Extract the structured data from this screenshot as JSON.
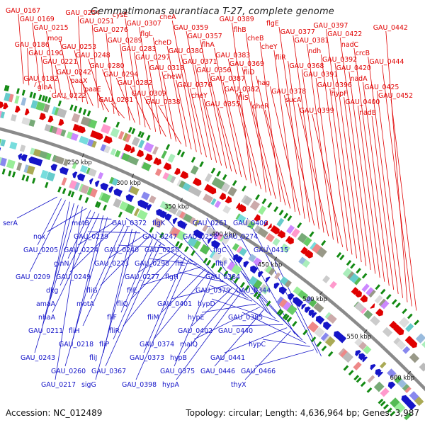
{
  "title": "Gemmatimonas aurantiaca T-27, complete genome",
  "footer": {
    "accession": "Accession: NC_012489",
    "summary": "Topology: circular; Length: 4,636,964 bp; Genes: 3,987"
  },
  "colors": {
    "forward_genes": "#e00000",
    "reverse_genes": "#1515c8",
    "backbone": "#8a8a8a",
    "tick_marker": "#138a13"
  },
  "ticks": [
    "250 kbp",
    "300 kbp",
    "350 kbp",
    "400 kbp",
    "450 kbp",
    "500 kbp",
    "550 kbp",
    "600 kbp"
  ],
  "forward_labels": [
    "GAU_0167",
    "GAU_0186",
    "GAU_0182",
    "GAU_0169",
    "GAU_0190",
    "glnA",
    "GAU_0215",
    "GAU_0221",
    "GAU_0222",
    "mog",
    "GAU_0242",
    "GAU_0254",
    "GAU_0253",
    "paaX",
    "GAU_0251",
    "GAU_0248",
    "paaE",
    "GAU_0276",
    "GAU_0280",
    "GAU_0281",
    "GAU_0289",
    "GAU_0294",
    "cysE",
    "GAU_0283",
    "GAU_0282",
    "GAU_0307",
    "GAU_0297",
    "GAU_0309",
    "flgL",
    "GAU_0318",
    "GAU_0338",
    "cheD",
    "cheW",
    "cheA",
    "GAU_0380",
    "GAU_0376",
    "GAU_0359",
    "GAU_0371",
    "cheY",
    "GAU_0357",
    "GAU_0356",
    "GAU_0355",
    "flhA",
    "GAU_0387",
    "GAU_0389",
    "GAU_0383",
    "GAU_0382",
    "flhB",
    "GAU_0369",
    "fliS",
    "cheB",
    "fliD",
    "cheR",
    "cheY",
    "hag",
    "flgE",
    "fliR",
    "GAU_0378",
    "GAU_0377",
    "GAU_0368",
    "sucA",
    "GAU_0381",
    "GAU_0391",
    "GAU_0399",
    "ndh",
    "GAU_0396",
    "GAU_0397",
    "GAU_0392",
    "hypF",
    "GAU_0422",
    "GAU_0420",
    "GAU_0400",
    "nadC",
    "nadA",
    "nadB",
    "crcB",
    "GAU_0425",
    "GAU_0442",
    "GAU_0444",
    "GAU_0452"
  ],
  "reverse_labels": [
    "serA",
    "GAU_0205",
    "GAU_0209",
    "amaA",
    "GAU_0211",
    "GAU_0243",
    "GAU_0217",
    "nox",
    "glnN",
    "dkg",
    "nhaA",
    "GAU_0218",
    "GAU_0260",
    "motB",
    "GAU_0224",
    "GAU_0249",
    "motA",
    "fliH",
    "fliJ",
    "sigG",
    "GAU_0239",
    "GAU_0273",
    "fliG",
    "fliF",
    "fliP",
    "GAU_0367",
    "GAU_0372",
    "GAU_0240",
    "GAU_0277",
    "fliQ",
    "fliR",
    "GAU_0373",
    "GAU_0398",
    "GAU_0247",
    "GAU_0298",
    "fliE",
    "fliM",
    "GAU_0374",
    "GAU_0375",
    "flgK",
    "GAU_0250",
    "flgH",
    "GAU_0401",
    "GAU_0402",
    "hypB",
    "hypA",
    "GAU_0252",
    "fliL",
    "GAU_0379",
    "hypE",
    "maIQ",
    "GAU_0446",
    "GAU_0261",
    "flgC",
    "GAU_0384",
    "hypD",
    "GAU_0440",
    "GAU_0441",
    "thyX",
    "GAU_0274",
    "flhF",
    "GAU_0344",
    "GAU_0385",
    "hypC",
    "GAU_0466",
    "GAU_0406",
    "GAU_0415"
  ]
}
